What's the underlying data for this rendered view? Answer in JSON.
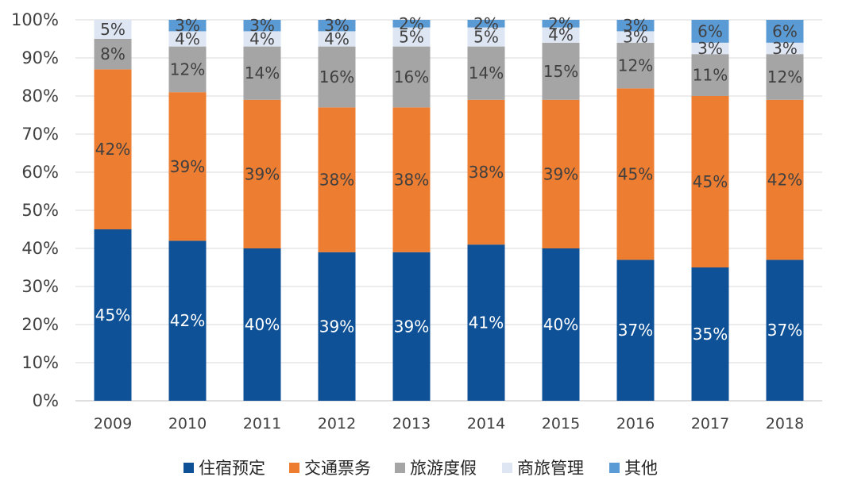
{
  "chart_data": {
    "type": "bar",
    "stacked": true,
    "categories": [
      "2009",
      "2010",
      "2011",
      "2012",
      "2013",
      "2014",
      "2015",
      "2016",
      "2017",
      "2018"
    ],
    "series": [
      {
        "name": "住宿预定",
        "color": "#0E5196",
        "label_color": "#ffffff",
        "values": [
          45,
          42,
          40,
          39,
          39,
          41,
          40,
          37,
          35,
          37
        ]
      },
      {
        "name": "交通票务",
        "color": "#ED7D31",
        "label_color": "#404040",
        "values": [
          42,
          39,
          39,
          38,
          38,
          38,
          39,
          45,
          45,
          42
        ]
      },
      {
        "name": "旅游度假",
        "color": "#A5A5A5",
        "label_color": "#404040",
        "values": [
          8,
          12,
          14,
          16,
          16,
          14,
          15,
          12,
          11,
          12
        ]
      },
      {
        "name": "商旅管理",
        "color": "#DEE6F3",
        "label_color": "#404040",
        "values": [
          5,
          4,
          4,
          4,
          5,
          5,
          4,
          3,
          3,
          3
        ]
      },
      {
        "name": "其他",
        "color": "#5B9BD5",
        "label_color": "#404040",
        "values": [
          0,
          3,
          3,
          3,
          2,
          2,
          2,
          3,
          6,
          6
        ]
      }
    ],
    "value_suffix": "%",
    "ylim": [
      0,
      100
    ],
    "yticks": [
      0,
      10,
      20,
      30,
      40,
      50,
      60,
      70,
      80,
      90,
      100
    ],
    "ytick_labels": [
      "0%",
      "10%",
      "20%",
      "30%",
      "40%",
      "50%",
      "60%",
      "70%",
      "80%",
      "90%",
      "100%"
    ],
    "grid": true,
    "legend_position": "bottom"
  }
}
